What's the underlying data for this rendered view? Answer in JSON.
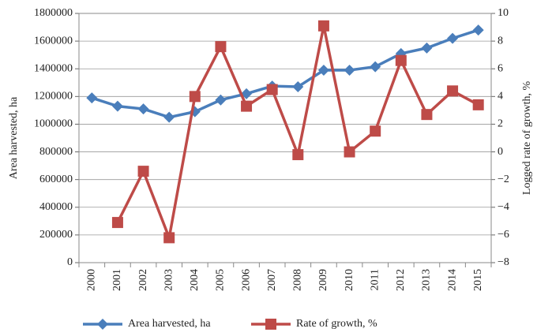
{
  "chart_data": {
    "type": "line",
    "categories": [
      "2000",
      "2001",
      "2002",
      "2003",
      "2004",
      "2005",
      "2006",
      "2007",
      "2008",
      "2009",
      "2010",
      "2011",
      "2012",
      "2013",
      "2014",
      "2015"
    ],
    "ylabel": "Area harvested, ha",
    "y2label": "Logged rate of growth, %",
    "ylim": [
      0,
      1800000
    ],
    "yticks": [
      0,
      200000,
      400000,
      600000,
      800000,
      1000000,
      1200000,
      1400000,
      1600000,
      1800000
    ],
    "y2lim": [
      -8,
      10
    ],
    "y2ticks": [
      {
        "value": -8,
        "label": "−8"
      },
      {
        "value": -6,
        "label": "−6"
      },
      {
        "value": -4,
        "label": "−4"
      },
      {
        "value": -2,
        "label": "−2"
      },
      0,
      2,
      4,
      6,
      8,
      10
    ],
    "grid": true,
    "legend": "bottom",
    "series": [
      {
        "name": "Area harvested, ha",
        "color": "#4a7ebb",
        "marker": "diamond",
        "values": [
          1190000,
          1130000,
          1110000,
          1050000,
          1090000,
          1175000,
          1220000,
          1275000,
          1270000,
          1390000,
          1390000,
          1415000,
          1510000,
          1550000,
          1620000,
          1680000
        ]
      },
      {
        "name": "Rate of growth, %",
        "color": "#be4b48",
        "marker": "square",
        "axis": "y2",
        "values": [
          null,
          -5.1,
          -1.4,
          -6.2,
          4.0,
          7.6,
          3.3,
          4.5,
          -0.2,
          9.1,
          0.0,
          1.5,
          6.6,
          2.7,
          4.4,
          3.4
        ]
      }
    ]
  }
}
